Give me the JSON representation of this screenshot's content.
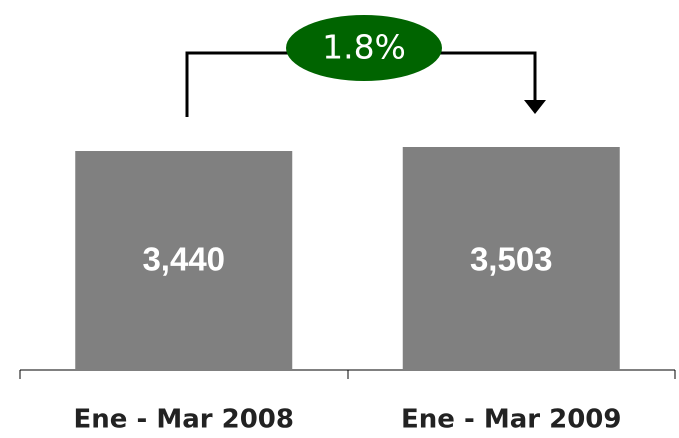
{
  "chart_data": {
    "type": "bar",
    "categories": [
      "Ene - Mar 2008",
      "Ene - Mar 2009"
    ],
    "values": [
      3440,
      3503
    ],
    "value_labels": [
      "3,440",
      "3,503"
    ],
    "color": "#808080",
    "annotation": "1.8%"
  }
}
